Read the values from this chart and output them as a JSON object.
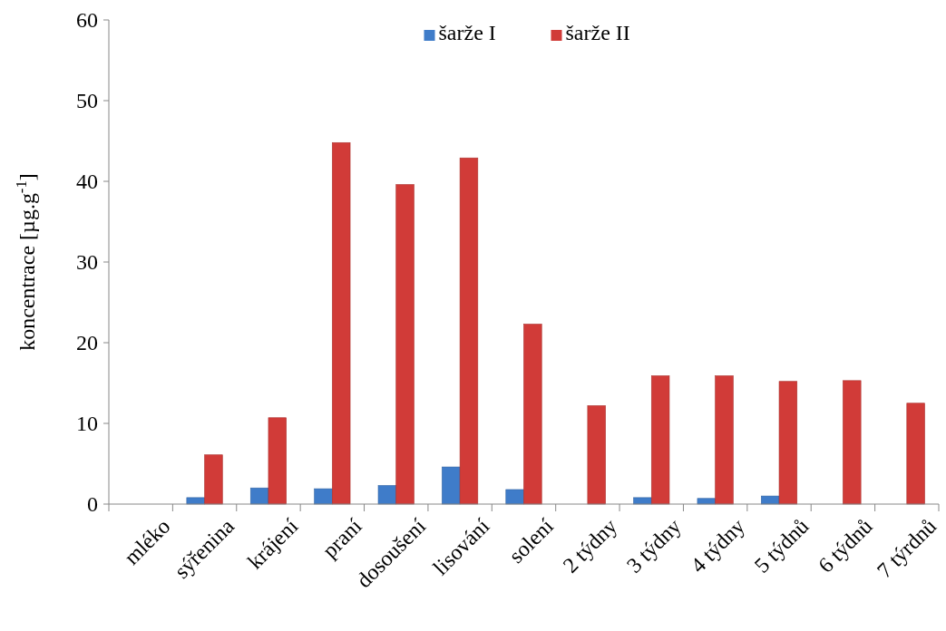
{
  "chart_data": {
    "type": "bar",
    "ylabel": "koncentrace [µg.g$^{-1}$]",
    "categories": [
      "mléko",
      "sýřenina",
      "krájení",
      "praní",
      "dosoušení",
      "lisování",
      "solení",
      "2 týdny",
      "3 týdny",
      "4 týdny",
      "5 týdnů",
      "6 týdnů",
      "7 týrdnů"
    ],
    "series": [
      {
        "name": "šarže I",
        "color": "#3f7cc9",
        "values": [
          0,
          0.8,
          2.0,
          1.9,
          2.3,
          4.6,
          1.8,
          0,
          0.8,
          0.7,
          1.0,
          0,
          0
        ]
      },
      {
        "name": "šarže II",
        "color": "#d13b38",
        "values": [
          0,
          6.1,
          10.7,
          44.8,
          39.6,
          42.9,
          22.3,
          12.2,
          15.9,
          15.9,
          15.2,
          15.3,
          12.5
        ]
      }
    ],
    "ylim": [
      0,
      60
    ],
    "yticks": [
      0,
      10,
      20,
      30,
      40,
      50,
      60
    ],
    "grid": false,
    "legend": "top"
  }
}
